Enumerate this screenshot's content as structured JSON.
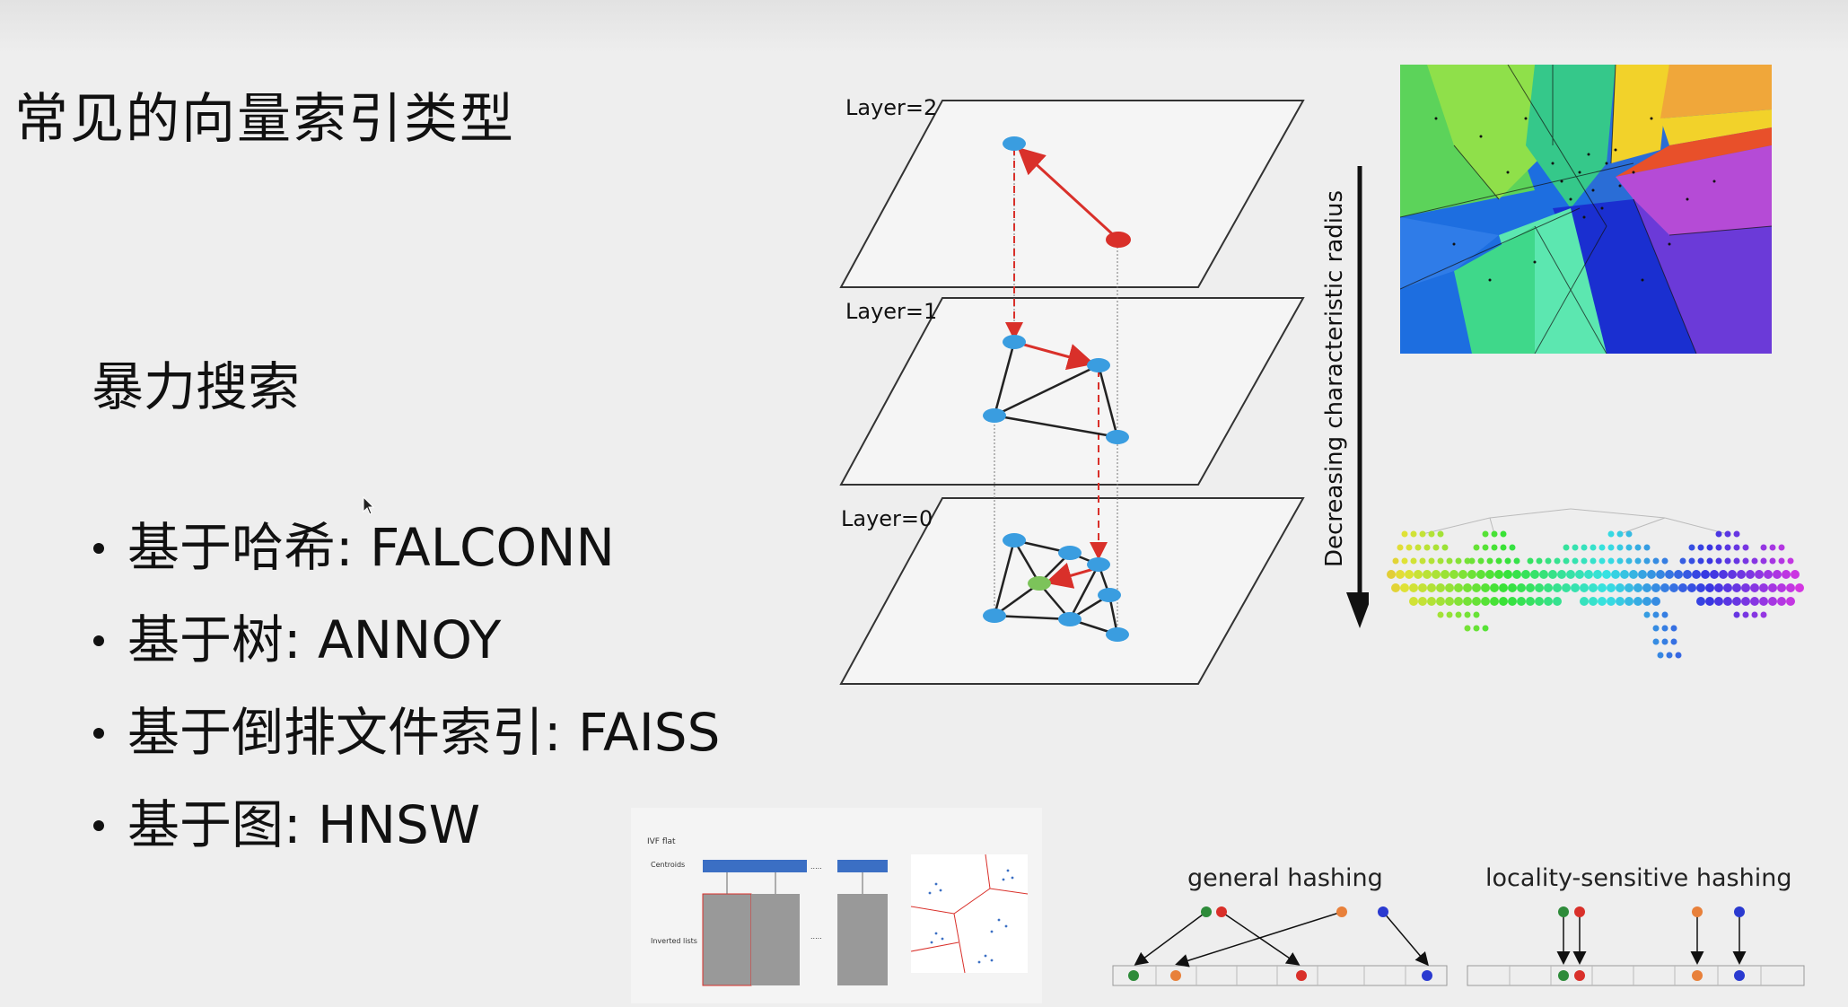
{
  "slide": {
    "title": "常见的向量索引类型",
    "brute_force": "暴力搜索",
    "bullets": [
      {
        "label": "基于哈希: FALCONN"
      },
      {
        "label": "基于树: ANNOY"
      },
      {
        "label": "基于倒排文件索引: FAISS"
      },
      {
        "label": "基于图: HNSW"
      }
    ]
  },
  "hnsw_diagram": {
    "layers": [
      "Layer=2",
      "Layer=1",
      "Layer=0"
    ],
    "arrow_label": "Decreasing characteristic radius",
    "colors": {
      "node": "#3a9de0",
      "entry": "#d9302a",
      "target": "#7cc35a",
      "search_path": "#d9302a"
    }
  },
  "ivf_figure": {
    "title": "IVF flat",
    "centroids_label": "Centroids",
    "inverted_lists_label": "Inverted lists",
    "ellipsis": "....."
  },
  "hashing_figure": {
    "general_label": "general hashing",
    "lsh_label": "locality-sensitive hashing"
  }
}
